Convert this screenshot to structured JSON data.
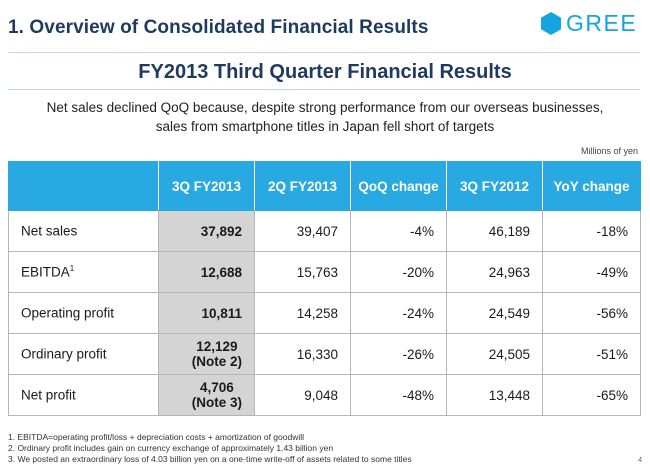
{
  "header": {
    "section_title": "1. Overview of Consolidated Financial Results",
    "logo_text": "GREE",
    "brand_color": "#14a5e0"
  },
  "main_title": "FY2013 Third Quarter Financial Results",
  "summary": {
    "line1": "Net sales declined QoQ because, despite strong performance from our overseas businesses,",
    "line2": "sales from smartphone titles in Japan fell short of targets"
  },
  "unit_note": "Millions of yen",
  "table": {
    "header_color": "#29a9e1",
    "columns": [
      "3Q FY2013",
      "2Q FY2013",
      "QoQ change",
      "3Q FY2012",
      "YoY change"
    ],
    "rows": [
      {
        "label": "Net sales",
        "sup": "",
        "q3fy13": "37,892",
        "note": "",
        "q2fy13": "39,407",
        "qoq": "-4%",
        "q3fy12": "46,189",
        "yoy": "-18%"
      },
      {
        "label": "EBITDA",
        "sup": "1",
        "q3fy13": "12,688",
        "note": "",
        "q2fy13": "15,763",
        "qoq": "-20%",
        "q3fy12": "24,963",
        "yoy": "-49%"
      },
      {
        "label": "Operating profit",
        "sup": "",
        "q3fy13": "10,811",
        "note": "",
        "q2fy13": "14,258",
        "qoq": "-24%",
        "q3fy12": "24,549",
        "yoy": "-56%"
      },
      {
        "label": "Ordinary profit",
        "sup": "",
        "q3fy13": "12,129",
        "note": "(Note 2)",
        "q2fy13": "16,330",
        "qoq": "-26%",
        "q3fy12": "24,505",
        "yoy": "-51%"
      },
      {
        "label": "Net profit",
        "sup": "",
        "q3fy13": "4,706",
        "note": "(Note 3)",
        "q2fy13": "9,048",
        "qoq": "-48%",
        "q3fy12": "13,448",
        "yoy": "-65%"
      }
    ]
  },
  "footnotes": [
    "1. EBITDA=operating profit/loss + depreciation costs + amortization of goodwill",
    "2. Ordinary profit includes gain on currency exchange of approximately 1.43 billion yen",
    "3. We posted an extraordinary loss of 4.03 billion yen on a one-time write-off of assets related to some titles"
  ],
  "page_number": "4"
}
